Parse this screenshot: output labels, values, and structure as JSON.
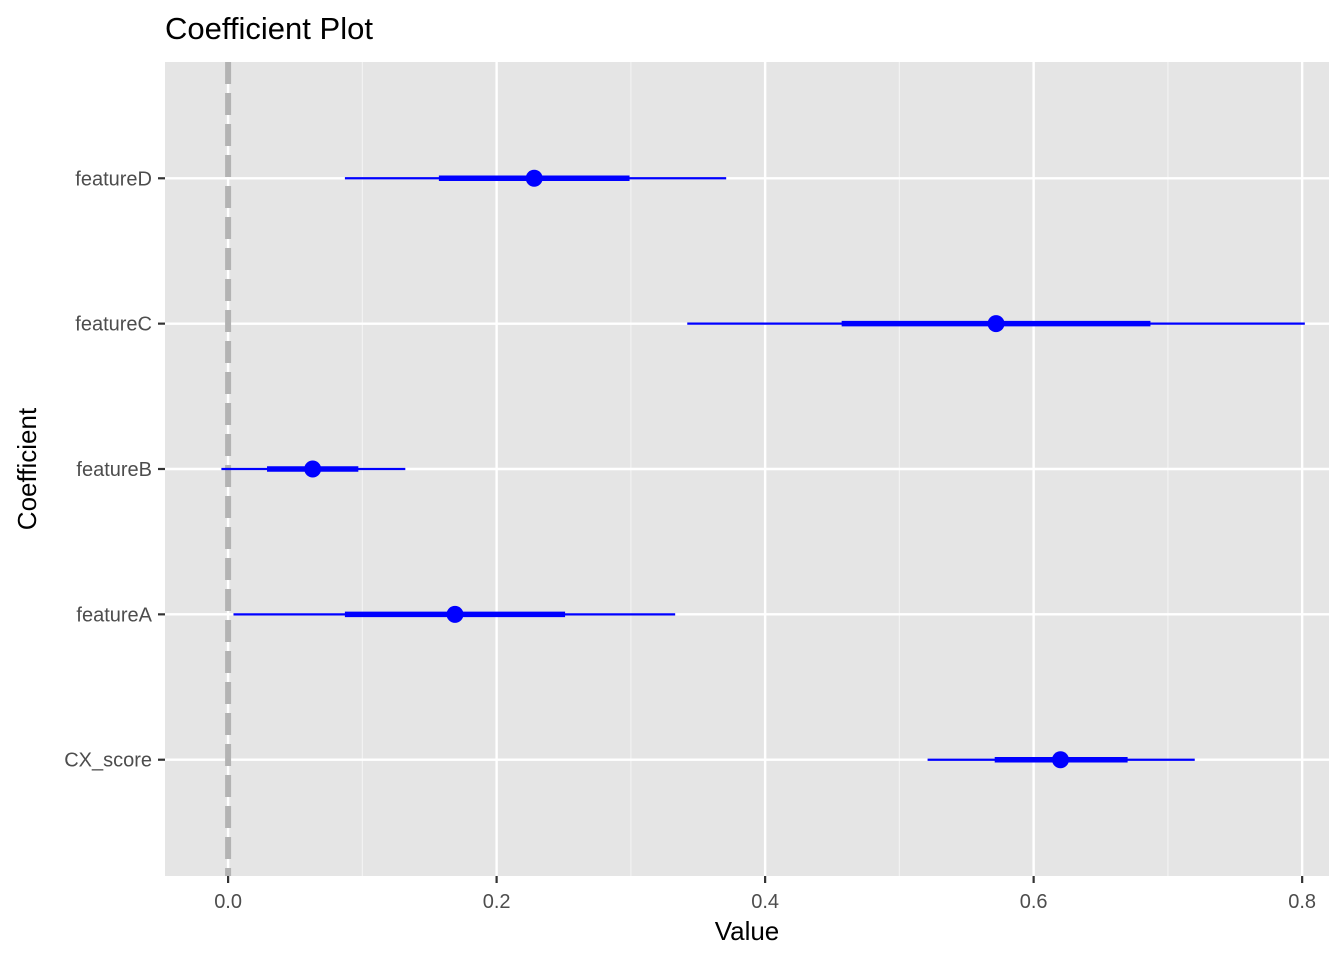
{
  "chart_data": {
    "type": "coefficient_plot",
    "title": "Coefficient Plot",
    "xlabel": "Value",
    "ylabel": "Coefficient",
    "xlim": [
      -0.047,
      0.82
    ],
    "x_ticks": [
      "0.0",
      "0.2",
      "0.4",
      "0.6",
      "0.8"
    ],
    "x_tick_values": [
      0.0,
      0.2,
      0.4,
      0.6,
      0.8
    ],
    "categories": [
      "CX_score",
      "featureA",
      "featureB",
      "featureC",
      "featureD"
    ],
    "coefficients": [
      {
        "name": "CX_score",
        "value": 0.62,
        "inner": [
          0.571,
          0.67
        ],
        "outer": [
          0.521,
          0.72
        ]
      },
      {
        "name": "featureA",
        "value": 0.169,
        "inner": [
          0.087,
          0.251
        ],
        "outer": [
          0.004,
          0.333
        ]
      },
      {
        "name": "featureB",
        "value": 0.063,
        "inner": [
          0.029,
          0.097
        ],
        "outer": [
          -0.005,
          0.132
        ]
      },
      {
        "name": "featureC",
        "value": 0.572,
        "inner": [
          0.457,
          0.687
        ],
        "outer": [
          0.342,
          0.802
        ]
      },
      {
        "name": "featureD",
        "value": 0.228,
        "inner": [
          0.157,
          0.299
        ],
        "outer": [
          0.087,
          0.371
        ]
      }
    ],
    "reference_line": {
      "x": 0,
      "style": "dashed",
      "color": "#b3b3b3"
    },
    "colors": {
      "point": "#0000ff",
      "panel": "#e5e5e5",
      "grid": "#ffffff"
    },
    "grid": true,
    "legend": "none"
  }
}
